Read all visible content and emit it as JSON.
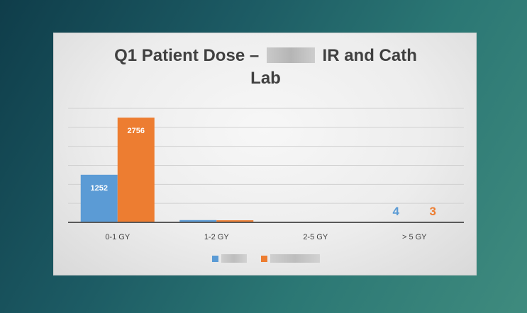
{
  "slide": {
    "title_line1_part1": "Q1 Patient Dose –",
    "title_line1_part2": "IR and Cath",
    "title_line2": "Lab"
  },
  "colors": {
    "series_a": "#5b9bd5",
    "series_b": "#ed7d31",
    "gridline": "#d0d0d0",
    "axis": "#595959",
    "tick_text": "#404040",
    "data_label_inside": "#ffffff"
  },
  "chart_data": {
    "type": "bar",
    "title": "Q1 Patient Dose – IR and Cath Lab",
    "categories": [
      "0-1 GY",
      "1-2 GY",
      "2-5 GY",
      "> 5 GY"
    ],
    "series": [
      {
        "values": [
          1252,
          60,
          12,
          4
        ],
        "data_labels": [
          "1252",
          "",
          "",
          "4"
        ]
      },
      {
        "values": [
          2756,
          55,
          15,
          3
        ],
        "data_labels": [
          "2756",
          "",
          "",
          "3"
        ]
      }
    ],
    "ylim": [
      0,
      3000
    ],
    "grid": true,
    "legend_position": "bottom"
  }
}
